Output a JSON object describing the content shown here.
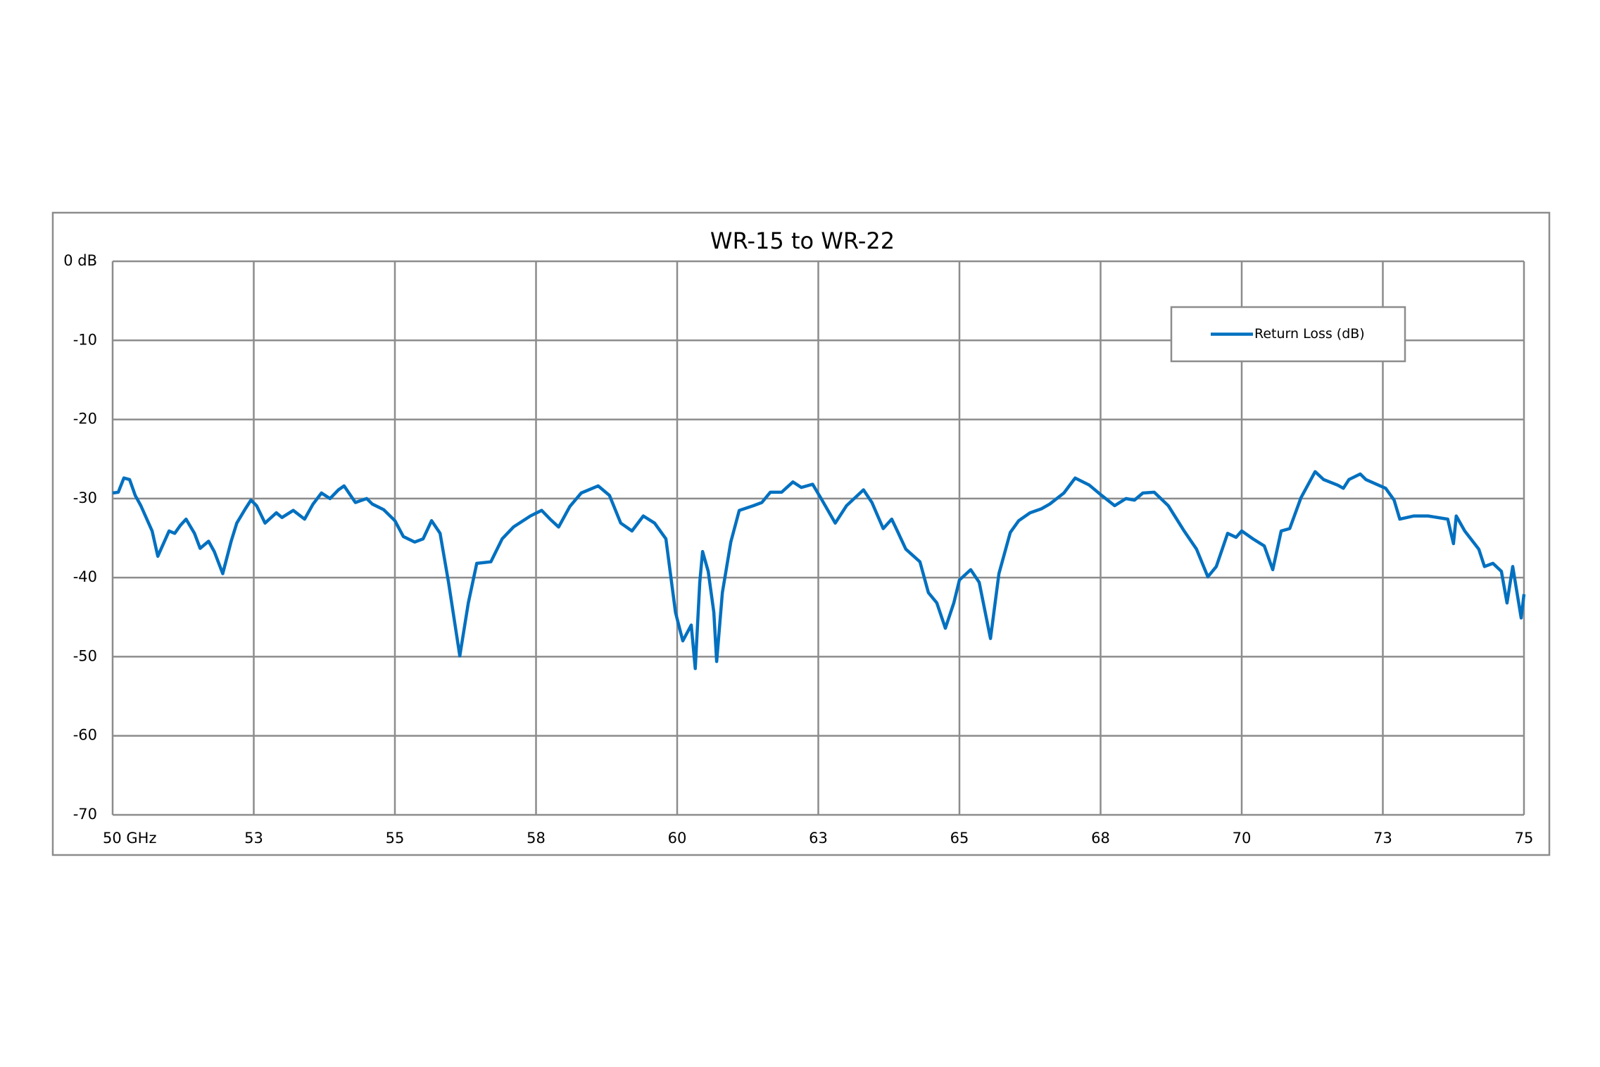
{
  "chart_data": {
    "type": "line",
    "title": "WR-15 to WR-22",
    "x": [
      50,
      50.1,
      50.2,
      50.3,
      50.4,
      50.5,
      50.7,
      50.8,
      51.0,
      51.1,
      51.2,
      51.3,
      51.45,
      51.55,
      51.7,
      51.8,
      51.95,
      52.1,
      52.2,
      52.35,
      52.45,
      52.55,
      52.7,
      52.9,
      53.0,
      53.2,
      53.4,
      53.55,
      53.7,
      53.85,
      54.0,
      54.1,
      54.3,
      54.5,
      54.6,
      54.8,
      55.0,
      55.15,
      55.35,
      55.5,
      55.65,
      55.8,
      55.95,
      56.15,
      56.3,
      56.45,
      56.7,
      56.9,
      57.1,
      57.4,
      57.6,
      57.75,
      57.9,
      58.1,
      58.3,
      58.6,
      58.8,
      59.0,
      59.2,
      59.4,
      59.6,
      59.8,
      59.97,
      60.1,
      60.25,
      60.32,
      60.4,
      60.45,
      60.55,
      60.65,
      60.7,
      60.8,
      60.95,
      61.1,
      61.35,
      61.5,
      61.65,
      61.85,
      62.05,
      62.2,
      62.4,
      62.55,
      62.8,
      63.0,
      63.3,
      63.45,
      63.65,
      63.8,
      63.9,
      64.05,
      64.3,
      64.45,
      64.6,
      64.75,
      64.9,
      65.0,
      65.2,
      65.35,
      65.55,
      65.7,
      65.9,
      66.05,
      66.25,
      66.45,
      66.6,
      66.85,
      67.05,
      67.3,
      67.5,
      67.75,
      67.95,
      68.1,
      68.25,
      68.45,
      68.7,
      68.98,
      69.2,
      69.4,
      69.55,
      69.75,
      69.9,
      70.0,
      70.2,
      70.4,
      70.55,
      70.7,
      70.85,
      71.05,
      71.3,
      71.45,
      71.7,
      71.8,
      71.9,
      72.1,
      72.2,
      72.55,
      72.7,
      72.8,
      73.05,
      73.3,
      73.65,
      73.75,
      73.8,
      73.95,
      74.2,
      74.3,
      74.45,
      74.6,
      74.7,
      74.8,
      74.95,
      75.0
    ],
    "series": [
      {
        "name": "Return Loss (dB)",
        "color": "#0070c0",
        "values": [
          -29.3,
          -29.2,
          -27.4,
          -27.6,
          -29.6,
          -30.9,
          -34.1,
          -37.3,
          -34.1,
          -34.4,
          -33.4,
          -32.6,
          -34.4,
          -36.3,
          -35.4,
          -36.7,
          -39.5,
          -35.4,
          -33.1,
          -31.3,
          -30.2,
          -30.9,
          -33.1,
          -31.8,
          -32.4,
          -31.5,
          -32.6,
          -30.7,
          -29.3,
          -30.0,
          -28.9,
          -28.4,
          -30.5,
          -30.0,
          -30.7,
          -31.4,
          -32.8,
          -34.8,
          -35.5,
          -35.1,
          -32.8,
          -34.4,
          -40.6,
          -49.9,
          -43.2,
          -38.2,
          -38.0,
          -35.1,
          -33.6,
          -32.2,
          -31.5,
          -32.6,
          -33.6,
          -31.0,
          -29.3,
          -28.4,
          -29.6,
          -33.1,
          -34.1,
          -32.2,
          -33.1,
          -35.1,
          -44.4,
          -48.0,
          -46.0,
          -51.5,
          -40.6,
          -36.7,
          -39.2,
          -44.4,
          -50.6,
          -41.9,
          -35.5,
          -31.5,
          -30.9,
          -30.5,
          -29.2,
          -29.2,
          -27.9,
          -28.6,
          -28.2,
          -30.0,
          -33.1,
          -30.9,
          -28.9,
          -30.5,
          -33.8,
          -32.6,
          -34.1,
          -36.4,
          -38.0,
          -41.9,
          -43.2,
          -46.4,
          -43.2,
          -40.3,
          -39.0,
          -40.6,
          -47.7,
          -39.5,
          -34.3,
          -32.8,
          -31.8,
          -31.3,
          -30.7,
          -29.3,
          -27.4,
          -28.3,
          -29.5,
          -30.9,
          -30.0,
          -30.2,
          -29.3,
          -29.2,
          -30.9,
          -34.1,
          -36.4,
          -39.9,
          -38.6,
          -34.4,
          -34.9,
          -34.1,
          -35.1,
          -36.0,
          -39.0,
          -34.1,
          -33.8,
          -29.9,
          -26.6,
          -27.6,
          -28.3,
          -28.7,
          -27.6,
          -26.9,
          -27.6,
          -28.7,
          -30.2,
          -32.6,
          -32.2,
          -32.2,
          -32.6,
          -35.7,
          -32.2,
          -34.1,
          -36.4,
          -38.6,
          -38.2,
          -39.2,
          -43.2,
          -38.6,
          -45.1,
          -42.1
        ]
      }
    ],
    "xlim": [
      50,
      75
    ],
    "xticks": [
      {
        "value": 50,
        "label": "50 GHz"
      },
      {
        "value": 52.5,
        "label": "53"
      },
      55,
      {
        "value": 57.5,
        "label": "58"
      },
      60,
      {
        "value": 62.5,
        "label": "63"
      },
      65,
      {
        "value": 67.5,
        "label": "68"
      },
      70,
      {
        "value": 72.5,
        "label": "73"
      },
      75
    ],
    "ylim": [
      -70,
      0
    ],
    "yticks": [
      {
        "value": 0,
        "label": "0 dB"
      },
      -10,
      -20,
      -30,
      -40,
      -50,
      -60,
      -70
    ],
    "grid": true,
    "legend": "upper right"
  }
}
